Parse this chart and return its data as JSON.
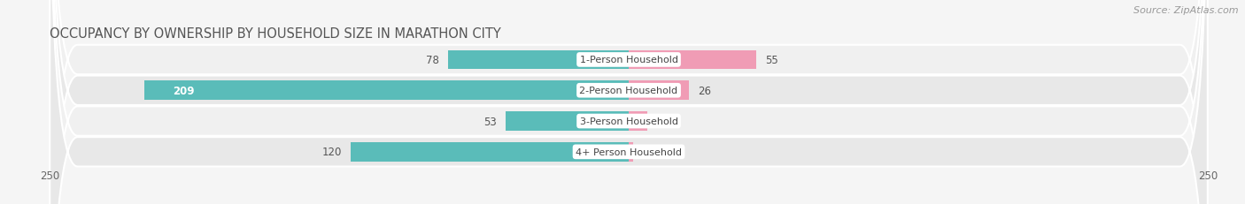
{
  "title": "OCCUPANCY BY OWNERSHIP BY HOUSEHOLD SIZE IN MARATHON CITY",
  "source": "Source: ZipAtlas.com",
  "categories": [
    "1-Person Household",
    "2-Person Household",
    "3-Person Household",
    "4+ Person Household"
  ],
  "owner_values": [
    78,
    209,
    53,
    120
  ],
  "renter_values": [
    55,
    26,
    8,
    2
  ],
  "owner_color": "#5abcb9",
  "renter_color": "#f09cb5",
  "fig_bg_color": "#f5f5f5",
  "row_colors": [
    "#f0f0f0",
    "#e8e8e8"
  ],
  "xlim": 250,
  "bar_height": 0.62,
  "title_fontsize": 10.5,
  "label_fontsize": 8.0,
  "value_fontsize": 8.5,
  "tick_fontsize": 8.5,
  "source_fontsize": 8.0,
  "legend_fontsize": 8.5
}
